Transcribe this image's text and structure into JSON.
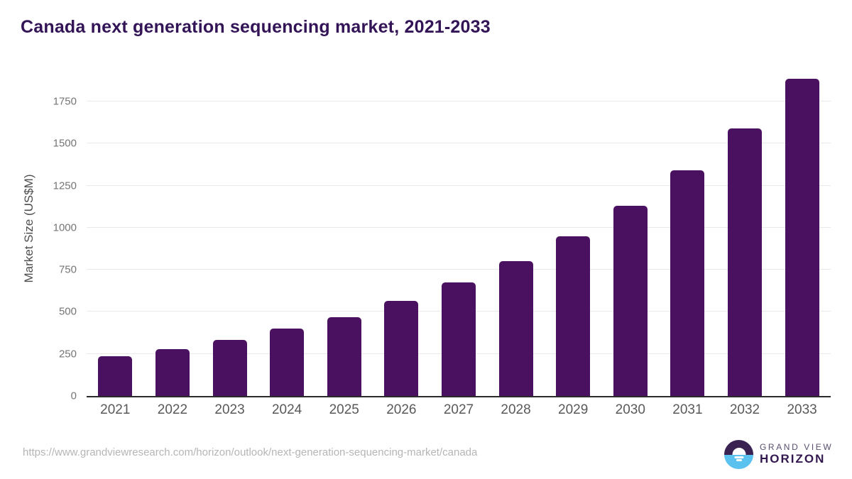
{
  "page": {
    "title": "Canada next generation sequencing market, 2021-2033"
  },
  "chart_data": {
    "type": "bar",
    "title": "Canada next generation sequencing market, 2021-2033",
    "categories": [
      "2021",
      "2022",
      "2023",
      "2024",
      "2025",
      "2026",
      "2027",
      "2028",
      "2029",
      "2030",
      "2031",
      "2032",
      "2033"
    ],
    "values": [
      235,
      280,
      335,
      400,
      470,
      565,
      675,
      800,
      950,
      1130,
      1340,
      1590,
      1885
    ],
    "xlabel": "",
    "ylabel": "Market Size (US$M)",
    "ylim": [
      0,
      1930
    ],
    "yticks": [
      0,
      250,
      500,
      750,
      1000,
      1250,
      1500,
      1750
    ],
    "grid": true,
    "legend": "none",
    "bar_color": "#4a1160"
  },
  "footer": {
    "source_url": "https://www.grandviewresearch.com/horizon/outlook/next-generation-sequencing-market/canada",
    "logo": {
      "brand_top": "GRAND VIEW",
      "brand_bottom": "HORIZON",
      "icon": "horizon-sunrise-icon",
      "icon_purple": "#3a2253",
      "icon_blue": "#5bc2f0"
    }
  },
  "colors": {
    "title": "#331457",
    "bar": "#4a1160",
    "axis_line": "#2b2b2b",
    "gridline": "#e9e9e9",
    "y_tick": "#757575",
    "x_tick": "#595959",
    "y_axis_title": "#4d4d4d",
    "url": "#b5b5b5",
    "logo_brand_top": "#5a4d6e",
    "logo_brand_bottom": "#33184f"
  }
}
